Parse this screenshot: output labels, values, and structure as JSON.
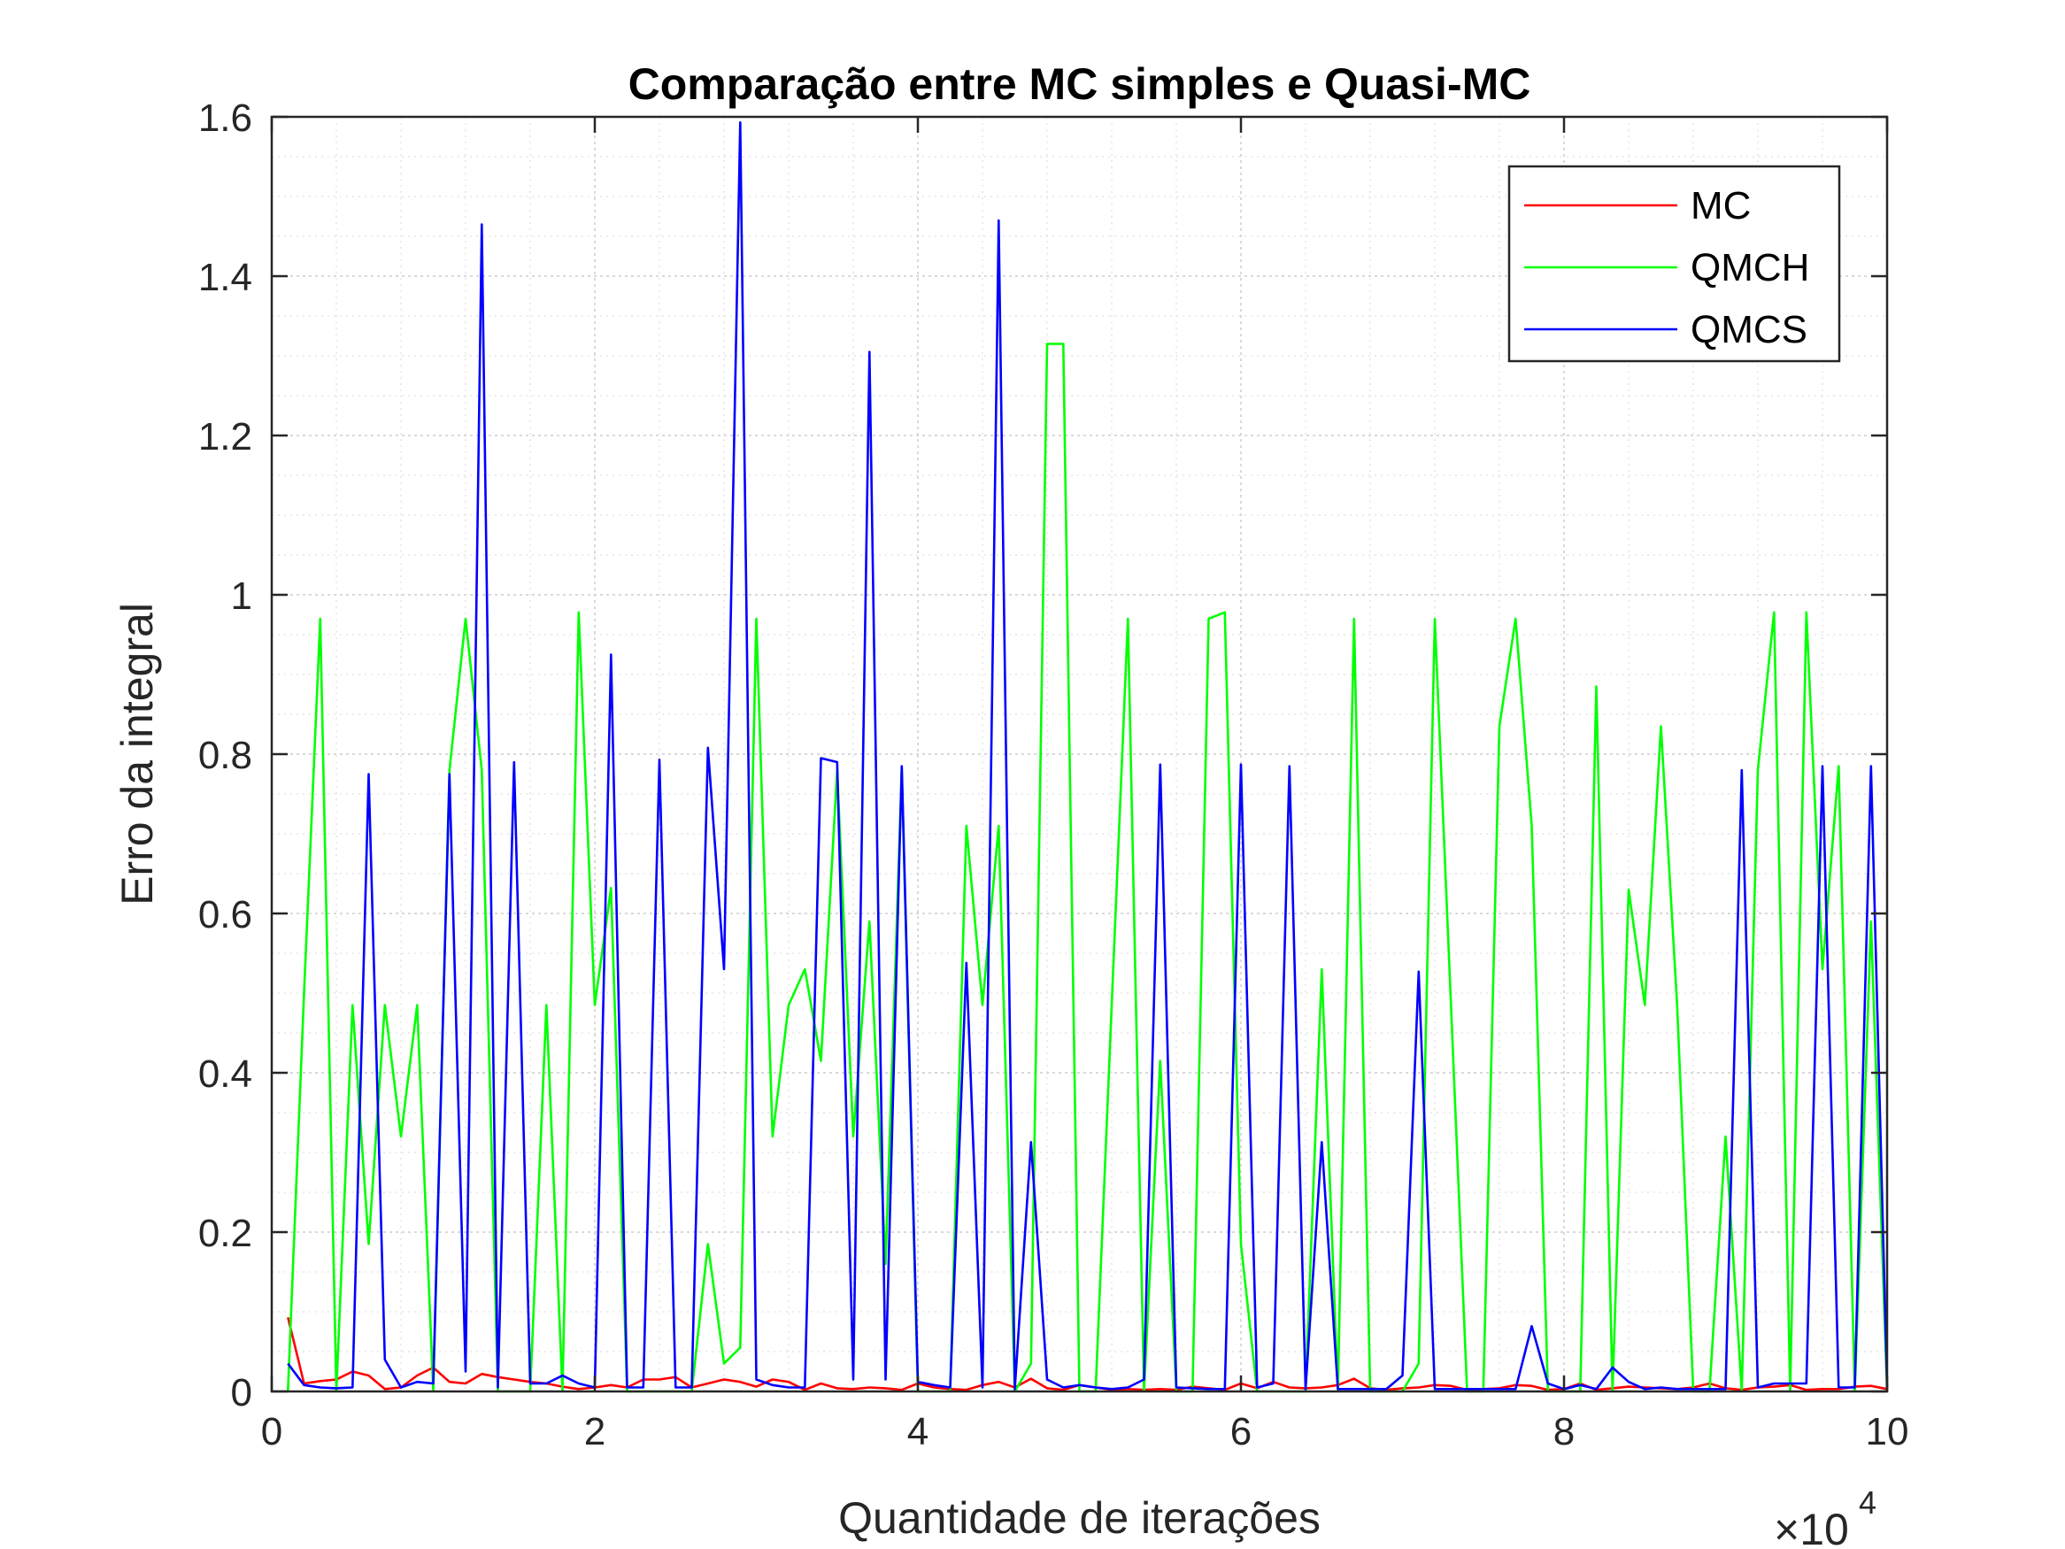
{
  "chart_data": {
    "type": "line",
    "title": "Comparação entre MC simples e Quasi-MC",
    "xlabel": "Quantidade de iterações",
    "ylabel": "Erro da integral",
    "x_exponent_label": "×10",
    "x_exponent_power": "4",
    "xlim": [
      0,
      100000
    ],
    "ylim": [
      0,
      1.6
    ],
    "x_ticks": [
      0,
      20000,
      40000,
      60000,
      80000,
      100000
    ],
    "x_tick_labels": [
      "0",
      "2",
      "4",
      "6",
      "8",
      "10"
    ],
    "y_ticks": [
      0,
      0.2,
      0.4,
      0.6,
      0.8,
      1.0,
      1.2,
      1.4,
      1.6
    ],
    "y_tick_labels": [
      "0",
      "0.2",
      "0.4",
      "0.6",
      "0.8",
      "1",
      "1.2",
      "1.4",
      "1.6"
    ],
    "grid": "on (major and minor)",
    "legend_position": "top-right",
    "x": [
      1000,
      2000,
      3000,
      4000,
      5000,
      6000,
      7000,
      8000,
      9000,
      10000,
      11000,
      12000,
      13000,
      14000,
      15000,
      16000,
      17000,
      18000,
      19000,
      20000,
      21000,
      22000,
      23000,
      24000,
      25000,
      26000,
      27000,
      28000,
      29000,
      30000,
      31000,
      32000,
      33000,
      34000,
      35000,
      36000,
      37000,
      38000,
      39000,
      40000,
      41000,
      42000,
      43000,
      44000,
      45000,
      46000,
      47000,
      48000,
      49000,
      50000,
      51000,
      52000,
      53000,
      54000,
      55000,
      56000,
      57000,
      58000,
      59000,
      60000,
      61000,
      62000,
      63000,
      64000,
      65000,
      66000,
      67000,
      68000,
      69000,
      70000,
      71000,
      72000,
      73000,
      74000,
      75000,
      76000,
      77000,
      78000,
      79000,
      80000,
      81000,
      82000,
      83000,
      84000,
      85000,
      86000,
      87000,
      88000,
      89000,
      90000,
      91000,
      92000,
      93000,
      94000,
      95000,
      96000,
      97000,
      98000,
      99000,
      100000
    ],
    "series": [
      {
        "name": "MC",
        "color": "#ff0000",
        "values": [
          0.093,
          0.01,
          0.013,
          0.015,
          0.025,
          0.02,
          0.003,
          0.005,
          0.02,
          0.03,
          0.012,
          0.01,
          0.022,
          0.018,
          0.015,
          0.012,
          0.01,
          0.006,
          0.003,
          0.005,
          0.008,
          0.005,
          0.015,
          0.015,
          0.018,
          0.005,
          0.01,
          0.015,
          0.012,
          0.006,
          0.015,
          0.012,
          0.002,
          0.01,
          0.004,
          0.003,
          0.005,
          0.004,
          0.002,
          0.01,
          0.005,
          0.003,
          0.002,
          0.008,
          0.012,
          0.005,
          0.016,
          0.004,
          0.002,
          0.008,
          0.005,
          0.002,
          0.003,
          0.002,
          0.003,
          0.002,
          0.006,
          0.004,
          0.002,
          0.01,
          0.004,
          0.012,
          0.005,
          0.004,
          0.005,
          0.008,
          0.016,
          0.004,
          0.002,
          0.004,
          0.005,
          0.008,
          0.007,
          0.002,
          0.003,
          0.004,
          0.008,
          0.007,
          0.002,
          0.003,
          0.01,
          0.002,
          0.004,
          0.006,
          0.005,
          0.004,
          0.003,
          0.005,
          0.01,
          0.004,
          0.002,
          0.005,
          0.006,
          0.008,
          0.002,
          0.003,
          0.003,
          0.006,
          0.007,
          0.003
        ]
      },
      {
        "name": "QMCH",
        "color": "#00ff00",
        "values": [
          0.0,
          0.5,
          0.97,
          0.0,
          0.485,
          0.185,
          0.485,
          0.32,
          0.485,
          0.0,
          0.78,
          0.97,
          0.78,
          0.0,
          0.0,
          0.0,
          0.485,
          0.0,
          0.978,
          0.485,
          0.632,
          0.0,
          0.0,
          0.0,
          0.0,
          0.0,
          0.185,
          0.035,
          0.055,
          0.97,
          0.32,
          0.485,
          0.53,
          0.415,
          0.78,
          0.32,
          0.59,
          0.16,
          0.78,
          0.0,
          0.0,
          0.0,
          0.71,
          0.485,
          0.71,
          0.0,
          0.035,
          1.315,
          1.315,
          0.0,
          0.0,
          0.485,
          0.97,
          0.0,
          0.415,
          0.0,
          0.0,
          0.97,
          0.978,
          0.185,
          0.0,
          0.0,
          0.0,
          0.0,
          0.53,
          0.0,
          0.97,
          0.0,
          0.0,
          0.0,
          0.035,
          0.97,
          0.485,
          0.0,
          0.0,
          0.835,
          0.97,
          0.71,
          0.0,
          0.0,
          0.0,
          0.885,
          0.0,
          0.63,
          0.485,
          0.835,
          0.485,
          0.0,
          0.0,
          0.32,
          0.0,
          0.78,
          0.978,
          0.0,
          0.978,
          0.53,
          0.785,
          0.0,
          0.59,
          0.0
        ]
      },
      {
        "name": "QMCS",
        "color": "#0000ff",
        "values": [
          0.035,
          0.008,
          0.005,
          0.004,
          0.005,
          0.775,
          0.04,
          0.005,
          0.012,
          0.01,
          0.775,
          0.025,
          1.465,
          0.005,
          0.79,
          0.01,
          0.01,
          0.02,
          0.01,
          0.005,
          0.925,
          0.005,
          0.005,
          0.793,
          0.005,
          0.005,
          0.808,
          0.53,
          1.593,
          0.015,
          0.008,
          0.005,
          0.005,
          0.795,
          0.79,
          0.015,
          1.305,
          0.015,
          0.785,
          0.012,
          0.008,
          0.005,
          0.538,
          0.005,
          1.47,
          0.003,
          0.313,
          0.015,
          0.005,
          0.008,
          0.005,
          0.003,
          0.005,
          0.015,
          0.787,
          0.005,
          0.004,
          0.003,
          0.003,
          0.787,
          0.005,
          0.01,
          0.785,
          0.003,
          0.313,
          0.003,
          0.003,
          0.003,
          0.003,
          0.02,
          0.527,
          0.003,
          0.003,
          0.003,
          0.003,
          0.003,
          0.003,
          0.082,
          0.01,
          0.003,
          0.008,
          0.003,
          0.03,
          0.012,
          0.003,
          0.005,
          0.003,
          0.003,
          0.003,
          0.003,
          0.78,
          0.005,
          0.01,
          0.01,
          0.01,
          0.785,
          0.005,
          0.005,
          0.785,
          0.005
        ]
      }
    ]
  }
}
